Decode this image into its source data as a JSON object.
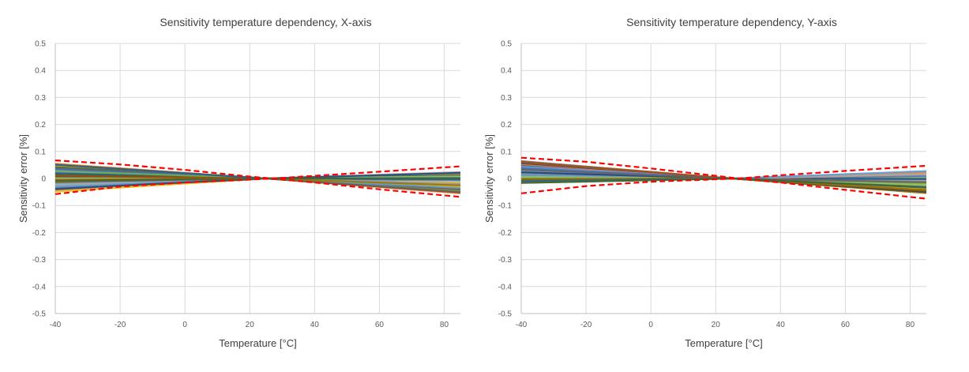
{
  "palette": [
    "#4472C4",
    "#ED7D31",
    "#A5A5A5",
    "#FFC000",
    "#5B9BD5",
    "#70AD47",
    "#264478",
    "#9E480E",
    "#636363",
    "#997300",
    "#255E91",
    "#43682B",
    "#698ED0",
    "#F1975A",
    "#7CAFDD",
    "#8CC168"
  ],
  "limit_color": "#FF0000",
  "grid_color": "#D9D9D9",
  "chart_data": [
    {
      "type": "line",
      "title": "Sensitivity temperature dependency, X-axis",
      "xlabel": "Temperature [°C]",
      "ylabel": "Sensitivity error [%]",
      "xlim": [
        -40,
        85
      ],
      "ylim": [
        -0.5,
        0.5
      ],
      "xticks": [
        -40,
        -20,
        0,
        20,
        40,
        60,
        80
      ],
      "xtick_labels": [
        "-40",
        "-20",
        "0",
        "20",
        "40",
        "60",
        "80"
      ],
      "yticks": [
        0.5,
        0.4,
        0.3,
        0.2,
        0.1,
        0,
        -0.1,
        -0.2,
        -0.3,
        -0.4,
        -0.5
      ],
      "ytick_labels": [
        "0.5",
        "0.4",
        "0.3",
        "0.2",
        "0.1",
        "0",
        "-0.1",
        "-0.2",
        "-0.3",
        "-0.4",
        "-0.5"
      ],
      "grid": true,
      "x": [
        -40,
        -20,
        0,
        25,
        40,
        60,
        85
      ],
      "device_curves": {
        "count": 60,
        "start_range": [
          -0.05,
          0.055
        ],
        "end_range": [
          -0.055,
          0.025
        ]
      },
      "limits": [
        {
          "name": "upper limit",
          "x": [
            -40,
            -20,
            0,
            20,
            27,
            40,
            60,
            85
          ],
          "y": [
            0.067,
            0.052,
            0.032,
            0.007,
            0,
            0.01,
            0.025,
            0.045
          ]
        },
        {
          "name": "lower limit",
          "x": [
            -40,
            -20,
            0,
            20,
            27,
            40,
            60,
            85
          ],
          "y": [
            -0.058,
            -0.03,
            -0.015,
            -0.004,
            0,
            -0.015,
            -0.04,
            -0.068
          ]
        }
      ]
    },
    {
      "type": "line",
      "title": "Sensitivity temperature dependency, Y-axis",
      "xlabel": "Temperature [°C]",
      "ylabel": "Sensitivity error [%]",
      "xlim": [
        -40,
        85
      ],
      "ylim": [
        -0.5,
        0.5
      ],
      "xticks": [
        -40,
        -20,
        0,
        20,
        40,
        60,
        80
      ],
      "xtick_labels": [
        "-40",
        "-20",
        "0",
        "20",
        "40",
        "60",
        "80"
      ],
      "yticks": [
        0.5,
        0.4,
        0.3,
        0.2,
        0.1,
        0,
        -0.1,
        -0.2,
        -0.3,
        -0.4,
        -0.5
      ],
      "ytick_labels": [
        "0.5",
        "0.4",
        "0.3",
        "0.2",
        "0.1",
        "0",
        "-0.1",
        "-0.2",
        "-0.3",
        "-0.4",
        "-0.5"
      ],
      "grid": true,
      "x": [
        -40,
        -20,
        0,
        25,
        40,
        60,
        85
      ],
      "device_curves": {
        "count": 60,
        "start_range": [
          -0.02,
          0.065
        ],
        "end_range": [
          -0.055,
          0.03
        ]
      },
      "limits": [
        {
          "name": "upper limit",
          "x": [
            -40,
            -20,
            0,
            20,
            27,
            40,
            60,
            85
          ],
          "y": [
            0.077,
            0.062,
            0.037,
            0.01,
            0,
            0.012,
            0.028,
            0.047
          ]
        },
        {
          "name": "lower limit",
          "x": [
            -40,
            -20,
            0,
            20,
            27,
            40,
            60,
            85
          ],
          "y": [
            -0.055,
            -0.028,
            -0.012,
            -0.003,
            0,
            -0.015,
            -0.042,
            -0.075
          ]
        }
      ]
    }
  ]
}
